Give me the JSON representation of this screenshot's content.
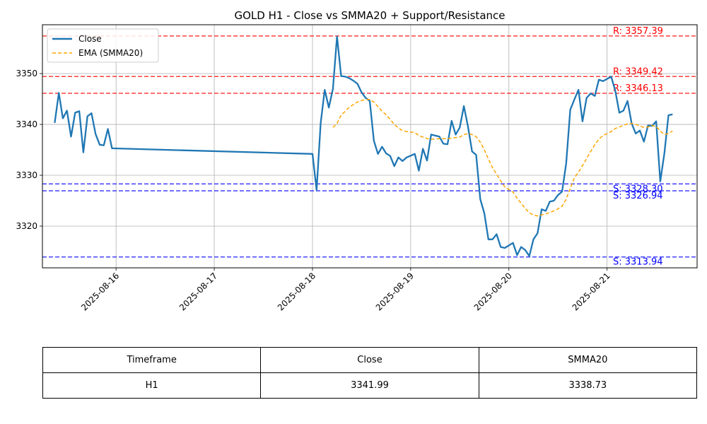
{
  "chart_data": {
    "type": "line",
    "title": "GOLD H1 - Close vs SMMA20 + Support/Resistance",
    "xlabel": "",
    "ylabel": "",
    "x_range": [
      "2025-08-15T06:00",
      "2025-08-21T22:00"
    ],
    "ylim": [
      3311.8,
      3359.6
    ],
    "x_ticks": [
      "2025-08-16",
      "2025-08-17",
      "2025-08-18",
      "2025-08-19",
      "2025-08-20",
      "2025-08-21"
    ],
    "y_ticks": [
      3320,
      3330,
      3340,
      3350
    ],
    "grid": true,
    "legend_position": "top-left",
    "series": [
      {
        "name": "Close",
        "color": "#1f77b4",
        "style": "solid",
        "points": [
          [
            "2025-08-15T09:00",
            3340.3
          ],
          [
            "2025-08-15T10:00",
            3346.2
          ],
          [
            "2025-08-15T11:00",
            3341.2
          ],
          [
            "2025-08-15T12:00",
            3342.7
          ],
          [
            "2025-08-15T13:00",
            3337.6
          ],
          [
            "2025-08-15T14:00",
            3342.3
          ],
          [
            "2025-08-15T15:00",
            3342.6
          ],
          [
            "2025-08-15T16:00",
            3334.5
          ],
          [
            "2025-08-15T17:00",
            3341.6
          ],
          [
            "2025-08-15T18:00",
            3342.2
          ],
          [
            "2025-08-15T19:00",
            3338.1
          ],
          [
            "2025-08-15T20:00",
            3336.0
          ],
          [
            "2025-08-15T21:00",
            3335.9
          ],
          [
            "2025-08-15T22:00",
            3339.1
          ],
          [
            "2025-08-15T23:00",
            3335.3
          ],
          [
            "2025-08-18T00:00",
            3334.2
          ],
          [
            "2025-08-18T01:00",
            3327.1
          ],
          [
            "2025-08-18T02:00",
            3340.3
          ],
          [
            "2025-08-18T03:00",
            3346.8
          ],
          [
            "2025-08-18T04:00",
            3343.3
          ],
          [
            "2025-08-18T05:00",
            3347.0
          ],
          [
            "2025-08-18T06:00",
            3357.3
          ],
          [
            "2025-08-18T07:00",
            3349.5
          ],
          [
            "2025-08-18T08:00",
            3349.4
          ],
          [
            "2025-08-18T09:00",
            3349.1
          ],
          [
            "2025-08-18T10:00",
            3348.6
          ],
          [
            "2025-08-18T11:00",
            3348.0
          ],
          [
            "2025-08-18T12:00",
            3346.3
          ],
          [
            "2025-08-18T13:00",
            3345.2
          ],
          [
            "2025-08-18T14:00",
            3344.6
          ],
          [
            "2025-08-18T15:00",
            3336.8
          ],
          [
            "2025-08-18T16:00",
            3334.2
          ],
          [
            "2025-08-18T17:00",
            3335.6
          ],
          [
            "2025-08-18T18:00",
            3334.3
          ],
          [
            "2025-08-18T19:00",
            3333.8
          ],
          [
            "2025-08-18T20:00",
            3331.8
          ],
          [
            "2025-08-18T21:00",
            3333.5
          ],
          [
            "2025-08-18T22:00",
            3332.8
          ],
          [
            "2025-08-18T23:00",
            3333.5
          ],
          [
            "2025-08-19T01:00",
            3334.2
          ],
          [
            "2025-08-19T02:00",
            3330.9
          ],
          [
            "2025-08-19T03:00",
            3335.2
          ],
          [
            "2025-08-19T04:00",
            3332.9
          ],
          [
            "2025-08-19T05:00",
            3338.0
          ],
          [
            "2025-08-19T06:00",
            3337.8
          ],
          [
            "2025-08-19T07:00",
            3337.6
          ],
          [
            "2025-08-19T08:00",
            3336.2
          ],
          [
            "2025-08-19T09:00",
            3336.1
          ],
          [
            "2025-08-19T10:00",
            3340.7
          ],
          [
            "2025-08-19T11:00",
            3338.0
          ],
          [
            "2025-08-19T12:00",
            3339.4
          ],
          [
            "2025-08-19T13:00",
            3343.6
          ],
          [
            "2025-08-19T14:00",
            3339.6
          ],
          [
            "2025-08-19T15:00",
            3334.7
          ],
          [
            "2025-08-19T16:00",
            3334.0
          ],
          [
            "2025-08-19T17:00",
            3325.3
          ],
          [
            "2025-08-19T18:00",
            3322.5
          ],
          [
            "2025-08-19T19:00",
            3317.4
          ],
          [
            "2025-08-19T20:00",
            3317.4
          ],
          [
            "2025-08-19T21:00",
            3318.4
          ],
          [
            "2025-08-19T22:00",
            3315.9
          ],
          [
            "2025-08-19T23:00",
            3315.7
          ],
          [
            "2025-08-20T01:00",
            3316.7
          ],
          [
            "2025-08-20T02:00",
            3314.3
          ],
          [
            "2025-08-20T03:00",
            3315.9
          ],
          [
            "2025-08-20T04:00",
            3315.3
          ],
          [
            "2025-08-20T05:00",
            3314.1
          ],
          [
            "2025-08-20T06:00",
            3317.4
          ],
          [
            "2025-08-20T07:00",
            3318.6
          ],
          [
            "2025-08-20T08:00",
            3323.3
          ],
          [
            "2025-08-20T09:00",
            3323.0
          ],
          [
            "2025-08-20T10:00",
            3324.8
          ],
          [
            "2025-08-20T11:00",
            3325.0
          ],
          [
            "2025-08-20T12:00",
            3326.1
          ],
          [
            "2025-08-20T13:00",
            3326.8
          ],
          [
            "2025-08-20T14:00",
            3332.3
          ],
          [
            "2025-08-20T15:00",
            3342.9
          ],
          [
            "2025-08-20T16:00",
            3344.9
          ],
          [
            "2025-08-20T17:00",
            3346.8
          ],
          [
            "2025-08-20T18:00",
            3340.6
          ],
          [
            "2025-08-20T19:00",
            3345.2
          ],
          [
            "2025-08-20T20:00",
            3346.1
          ],
          [
            "2025-08-20T21:00",
            3345.6
          ],
          [
            "2025-08-20T22:00",
            3348.8
          ],
          [
            "2025-08-20T23:00",
            3348.5
          ],
          [
            "2025-08-21T01:00",
            3349.4
          ],
          [
            "2025-08-21T02:00",
            3346.6
          ],
          [
            "2025-08-21T03:00",
            3342.3
          ],
          [
            "2025-08-21T04:00",
            3342.7
          ],
          [
            "2025-08-21T05:00",
            3344.6
          ],
          [
            "2025-08-21T06:00",
            3340.2
          ],
          [
            "2025-08-21T07:00",
            3338.2
          ],
          [
            "2025-08-21T08:00",
            3338.8
          ],
          [
            "2025-08-21T09:00",
            3336.6
          ],
          [
            "2025-08-21T10:00",
            3339.8
          ],
          [
            "2025-08-21T11:00",
            3339.7
          ],
          [
            "2025-08-21T12:00",
            3340.6
          ],
          [
            "2025-08-21T13:00",
            3328.8
          ],
          [
            "2025-08-21T14:00",
            3334.3
          ],
          [
            "2025-08-21T15:00",
            3341.8
          ],
          [
            "2025-08-21T16:00",
            3342.0
          ]
        ]
      },
      {
        "name": "EMA (SMMA20)",
        "color": "#ffa500",
        "style": "dashed",
        "points": [
          [
            "2025-08-18T05:00",
            3339.4
          ],
          [
            "2025-08-18T06:00",
            3340.2
          ],
          [
            "2025-08-18T07:00",
            3341.8
          ],
          [
            "2025-08-18T08:00",
            3342.6
          ],
          [
            "2025-08-18T09:00",
            3343.4
          ],
          [
            "2025-08-18T10:00",
            3343.9
          ],
          [
            "2025-08-18T11:00",
            3344.4
          ],
          [
            "2025-08-18T12:00",
            3344.7
          ],
          [
            "2025-08-18T13:00",
            3344.9
          ],
          [
            "2025-08-18T14:00",
            3344.9
          ],
          [
            "2025-08-18T15:00",
            3344.4
          ],
          [
            "2025-08-18T16:00",
            3343.5
          ],
          [
            "2025-08-18T17:00",
            3342.6
          ],
          [
            "2025-08-18T18:00",
            3341.9
          ],
          [
            "2025-08-18T19:00",
            3341.0
          ],
          [
            "2025-08-18T20:00",
            3340.0
          ],
          [
            "2025-08-18T21:00",
            3339.3
          ],
          [
            "2025-08-18T22:00",
            3338.8
          ],
          [
            "2025-08-18T23:00",
            3338.6
          ],
          [
            "2025-08-19T01:00",
            3338.4
          ],
          [
            "2025-08-19T02:00",
            3337.8
          ],
          [
            "2025-08-19T03:00",
            3337.5
          ],
          [
            "2025-08-19T04:00",
            3337.2
          ],
          [
            "2025-08-19T05:00",
            3337.1
          ],
          [
            "2025-08-19T06:00",
            3337.1
          ],
          [
            "2025-08-19T07:00",
            3337.2
          ],
          [
            "2025-08-19T08:00",
            3337.2
          ],
          [
            "2025-08-19T09:00",
            3337.2
          ],
          [
            "2025-08-19T10:00",
            3337.3
          ],
          [
            "2025-08-19T11:00",
            3337.4
          ],
          [
            "2025-08-19T12:00",
            3337.5
          ],
          [
            "2025-08-19T13:00",
            3338.0
          ],
          [
            "2025-08-19T14:00",
            3338.2
          ],
          [
            "2025-08-19T15:00",
            3338.0
          ],
          [
            "2025-08-19T16:00",
            3337.6
          ],
          [
            "2025-08-19T17:00",
            3336.5
          ],
          [
            "2025-08-19T18:00",
            3335.0
          ],
          [
            "2025-08-19T19:00",
            3333.2
          ],
          [
            "2025-08-19T20:00",
            3331.5
          ],
          [
            "2025-08-19T21:00",
            3330.2
          ],
          [
            "2025-08-19T22:00",
            3328.9
          ],
          [
            "2025-08-19T23:00",
            3327.7
          ],
          [
            "2025-08-20T01:00",
            3326.7
          ],
          [
            "2025-08-20T02:00",
            3325.5
          ],
          [
            "2025-08-20T03:00",
            3324.5
          ],
          [
            "2025-08-20T04:00",
            3323.5
          ],
          [
            "2025-08-20T05:00",
            3322.6
          ],
          [
            "2025-08-20T06:00",
            3322.2
          ],
          [
            "2025-08-20T07:00",
            3322.0
          ],
          [
            "2025-08-20T08:00",
            3322.2
          ],
          [
            "2025-08-20T09:00",
            3322.4
          ],
          [
            "2025-08-20T10:00",
            3322.7
          ],
          [
            "2025-08-20T11:00",
            3323.0
          ],
          [
            "2025-08-20T12:00",
            3323.4
          ],
          [
            "2025-08-20T13:00",
            3323.9
          ],
          [
            "2025-08-20T14:00",
            3325.3
          ],
          [
            "2025-08-20T15:00",
            3327.4
          ],
          [
            "2025-08-20T16:00",
            3329.5
          ],
          [
            "2025-08-20T17:00",
            3330.6
          ],
          [
            "2025-08-20T18:00",
            3331.9
          ],
          [
            "2025-08-20T19:00",
            3333.3
          ],
          [
            "2025-08-20T20:00",
            3334.7
          ],
          [
            "2025-08-20T21:00",
            3336.0
          ],
          [
            "2025-08-20T22:00",
            3337.1
          ],
          [
            "2025-08-20T23:00",
            3337.8
          ],
          [
            "2025-08-21T01:00",
            3338.6
          ],
          [
            "2025-08-21T02:00",
            3339.2
          ],
          [
            "2025-08-21T03:00",
            3339.5
          ],
          [
            "2025-08-21T04:00",
            3339.8
          ],
          [
            "2025-08-21T05:00",
            3340.1
          ],
          [
            "2025-08-21T06:00",
            3340.2
          ],
          [
            "2025-08-21T07:00",
            3340.0
          ],
          [
            "2025-08-21T08:00",
            3339.7
          ],
          [
            "2025-08-21T09:00",
            3339.4
          ],
          [
            "2025-08-21T10:00",
            3339.5
          ],
          [
            "2025-08-21T11:00",
            3339.8
          ],
          [
            "2025-08-21T12:00",
            3339.6
          ],
          [
            "2025-08-21T13:00",
            3338.7
          ],
          [
            "2025-08-21T14:00",
            3338.0
          ],
          [
            "2025-08-21T15:00",
            3338.2
          ],
          [
            "2025-08-21T16:00",
            3338.7
          ]
        ]
      }
    ],
    "levels": [
      {
        "kind": "resistance",
        "value": 3357.39,
        "label": "R: 3357.39",
        "color": "#ff0000"
      },
      {
        "kind": "resistance",
        "value": 3349.42,
        "label": "R: 3349.42",
        "color": "#ff0000"
      },
      {
        "kind": "resistance",
        "value": 3346.13,
        "label": "R: 3346.13",
        "color": "#ff0000"
      },
      {
        "kind": "support",
        "value": 3328.3,
        "label": "S: 3328.30",
        "color": "#0000ff"
      },
      {
        "kind": "support",
        "value": 3326.94,
        "label": "S: 3326.94",
        "color": "#0000ff"
      },
      {
        "kind": "support",
        "value": 3313.94,
        "label": "S: 3313.94",
        "color": "#0000ff"
      }
    ]
  },
  "table": {
    "headers": [
      "Timeframe",
      "Close",
      "SMMA20"
    ],
    "rows": [
      [
        "H1",
        "3341.99",
        "3338.73"
      ]
    ]
  }
}
